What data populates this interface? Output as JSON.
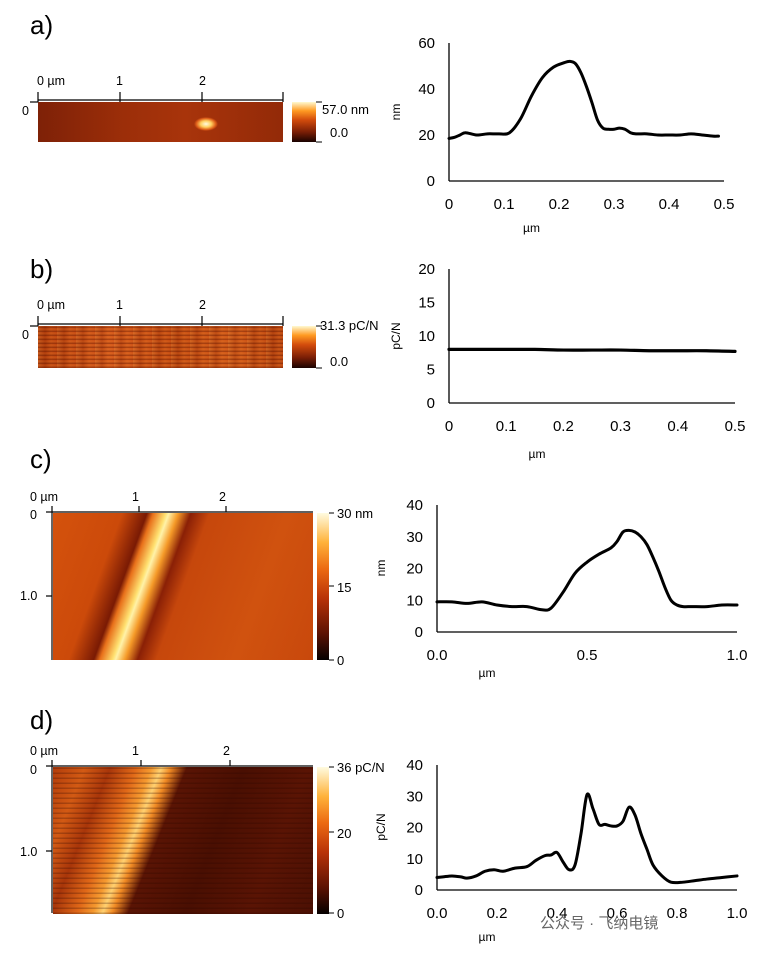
{
  "panels": {
    "a": {
      "label": "a)",
      "map_axis": {
        "x_ticks": [
          "0 µm",
          "1",
          "2"
        ],
        "y_ticks": [
          "0"
        ]
      },
      "colorbar": {
        "max": "57.0 nm",
        "min": "0.0"
      },
      "colors": {
        "dark": "#7a1e06",
        "mid": "#c2410e",
        "bright": "#fff6c0"
      }
    },
    "b": {
      "label": "b)",
      "map_axis": {
        "x_ticks": [
          "0 µm",
          "1",
          "2"
        ],
        "y_ticks": [
          "0"
        ]
      },
      "colorbar": {
        "max": "31.3 pC/N",
        "min": "0.0"
      }
    },
    "c": {
      "label": "c)",
      "map_axis": {
        "x_ticks": [
          "0 µm",
          "1",
          "2"
        ],
        "y_ticks": [
          "0",
          "1.0"
        ]
      },
      "colorbar": {
        "max": "30 nm",
        "mid": "15",
        "min": "0"
      }
    },
    "d": {
      "label": "d)",
      "map_axis": {
        "x_ticks": [
          "0 µm",
          "1",
          "2"
        ],
        "y_ticks": [
          "0",
          "1.0"
        ]
      },
      "colorbar": {
        "max": "36 pC/N",
        "mid": "20",
        "min": "0"
      }
    }
  },
  "watermark": "公众号 · 飞纳电镜",
  "chart_data": [
    {
      "type": "line",
      "panel": "a",
      "xlabel": "µm",
      "ylabel": "nm",
      "xlim": [
        0,
        0.5
      ],
      "ylim": [
        0,
        60
      ],
      "x_ticks": [
        "0",
        "0.1",
        "0.2",
        "0.3",
        "0.4",
        "0.5"
      ],
      "y_ticks": [
        "0",
        "20",
        "40",
        "60"
      ],
      "series": [
        {
          "x": [
            0,
            0.01,
            0.02,
            0.03,
            0.05,
            0.07,
            0.09,
            0.11,
            0.13,
            0.15,
            0.17,
            0.19,
            0.21,
            0.22,
            0.23,
            0.24,
            0.25,
            0.26,
            0.27,
            0.28,
            0.29,
            0.3,
            0.31,
            0.32,
            0.33,
            0.34,
            0.36,
            0.38,
            0.4,
            0.42,
            0.44,
            0.46,
            0.48,
            0.49
          ],
          "y": [
            18.5,
            19,
            20,
            21,
            20,
            20.5,
            20.5,
            21,
            27,
            37,
            45,
            49.5,
            51.5,
            52,
            51,
            47,
            41,
            34,
            26.5,
            23,
            22.5,
            22.5,
            23,
            22.5,
            21,
            20.5,
            20.5,
            20,
            20,
            20,
            20.5,
            20,
            19.5,
            19.5
          ]
        }
      ]
    },
    {
      "type": "line",
      "panel": "b",
      "xlabel": "µm",
      "ylabel": "pC/N",
      "xlim": [
        0,
        0.5
      ],
      "ylim": [
        0,
        20
      ],
      "x_ticks": [
        "0",
        "0.1",
        "0.2",
        "0.3",
        "0.4",
        "0.5"
      ],
      "y_ticks": [
        "0",
        "5",
        "10",
        "15",
        "20"
      ],
      "series": [
        {
          "x": [
            0,
            0.05,
            0.1,
            0.15,
            0.2,
            0.25,
            0.3,
            0.35,
            0.4,
            0.45,
            0.5
          ],
          "y": [
            8,
            8,
            8,
            8,
            7.9,
            7.9,
            7.9,
            7.8,
            7.8,
            7.8,
            7.7
          ]
        }
      ]
    },
    {
      "type": "line",
      "panel": "c",
      "xlabel": "µm",
      "ylabel": "nm",
      "xlim": [
        0,
        1.0
      ],
      "ylim": [
        0,
        40
      ],
      "x_ticks": [
        "0.0",
        "0.5",
        "1.0"
      ],
      "y_ticks": [
        "0",
        "10",
        "20",
        "30",
        "40"
      ],
      "series": [
        {
          "x": [
            0,
            0.05,
            0.1,
            0.15,
            0.2,
            0.25,
            0.3,
            0.35,
            0.38,
            0.42,
            0.46,
            0.5,
            0.54,
            0.58,
            0.6,
            0.62,
            0.64,
            0.66,
            0.68,
            0.7,
            0.72,
            0.74,
            0.76,
            0.78,
            0.8,
            0.82,
            0.85,
            0.9,
            0.95,
            1.0
          ],
          "y": [
            9.5,
            9.5,
            9,
            9.5,
            8.5,
            8,
            8,
            7,
            7.5,
            12.5,
            18.5,
            22,
            24.5,
            26.5,
            28.5,
            31.5,
            32,
            31.5,
            30,
            27.5,
            23.5,
            19,
            14,
            10,
            8.5,
            8,
            8,
            8,
            8.5,
            8.5
          ]
        }
      ]
    },
    {
      "type": "line",
      "panel": "d",
      "xlabel": "µm",
      "ylabel": "pC/N",
      "xlim": [
        0,
        1.0
      ],
      "ylim": [
        0,
        40
      ],
      "x_ticks": [
        "0.0",
        "0.2",
        "0.4",
        "0.6",
        "0.8",
        "1.0"
      ],
      "y_ticks": [
        "0",
        "10",
        "20",
        "30",
        "40"
      ],
      "series": [
        {
          "x": [
            0,
            0.02,
            0.05,
            0.08,
            0.1,
            0.13,
            0.16,
            0.19,
            0.22,
            0.26,
            0.3,
            0.33,
            0.36,
            0.38,
            0.4,
            0.42,
            0.44,
            0.46,
            0.48,
            0.5,
            0.52,
            0.54,
            0.56,
            0.58,
            0.6,
            0.62,
            0.64,
            0.66,
            0.68,
            0.7,
            0.72,
            0.75,
            0.78,
            0.82,
            0.86,
            0.9,
            0.95,
            1.0
          ],
          "y": [
            4,
            4.2,
            4.5,
            4.2,
            3.8,
            4.5,
            6,
            6.5,
            6,
            7,
            7.5,
            9.5,
            11,
            11.2,
            12,
            9,
            6.5,
            8,
            18,
            30.5,
            26,
            21,
            21,
            20.5,
            20.5,
            22,
            26.5,
            24,
            18,
            13,
            8,
            4.5,
            2.5,
            2.5,
            3,
            3.5,
            4,
            4.5
          ]
        }
      ]
    }
  ]
}
